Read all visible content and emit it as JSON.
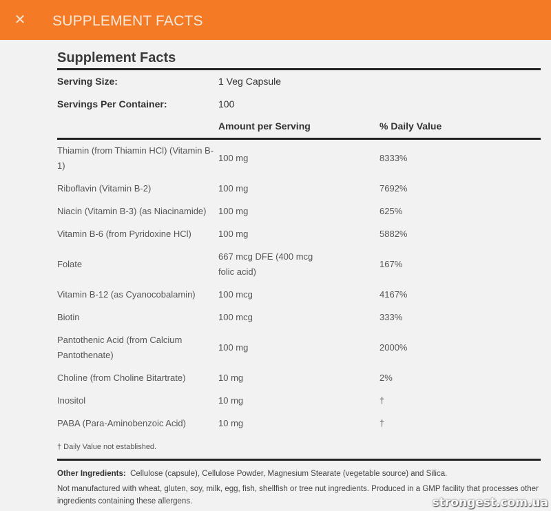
{
  "header": {
    "title": "SUPPLEMENT FACTS",
    "close_icon": "close-icon"
  },
  "facts": {
    "heading": "Supplement Facts",
    "serving_size_label": "Serving Size:",
    "serving_size_value": "1 Veg Capsule",
    "servings_label": "Servings Per Container:",
    "servings_value": "100",
    "col_amount": "Amount per Serving",
    "col_dv": "% Daily Value",
    "rows": [
      {
        "name": "Thiamin (from Thiamin HCl) (Vitamin B-1)",
        "amount": "100 mg",
        "dv": "8333%"
      },
      {
        "name": "Riboflavin (Vitamin B-2)",
        "amount": "100 mg",
        "dv": "7692%"
      },
      {
        "name": "Niacin (Vitamin B-3) (as Niacinamide)",
        "amount": "100 mg",
        "dv": "625%"
      },
      {
        "name": "Vitamin B-6 (from Pyridoxine HCl)",
        "amount": "100 mg",
        "dv": "5882%"
      },
      {
        "name": "Folate",
        "amount": "667 mcg DFE (400 mcg folic acid)",
        "dv": "167%"
      },
      {
        "name": "Vitamin B-12 (as Cyanocobalamin)",
        "amount": "100 mcg",
        "dv": "4167%"
      },
      {
        "name": "Biotin",
        "amount": "100 mcg",
        "dv": "333%"
      },
      {
        "name": "Pantothenic Acid (from Calcium Pantothenate)",
        "amount": "100 mg",
        "dv": "2000%"
      },
      {
        "name": "Choline (from Choline Bitartrate)",
        "amount": "10 mg",
        "dv": "2%"
      },
      {
        "name": "Inositol",
        "amount": "10 mg",
        "dv": "†"
      },
      {
        "name": "PABA (Para-Aminobenzoic Acid)",
        "amount": "10 mg",
        "dv": "†"
      }
    ],
    "footnote": "† Daily Value not established.",
    "other_label": "Other Ingredients:",
    "other_value": "Cellulose (capsule), Cellulose Powder, Magnesium Stearate (vegetable source) and Silica.",
    "allergen": "Not manufactured with wheat, gluten, soy, milk, egg, fish, shellfish or tree nut ingredients. Produced in a GMP facility that processes other ingredients containing these allergens."
  },
  "watermark": "strongest.com.ua"
}
